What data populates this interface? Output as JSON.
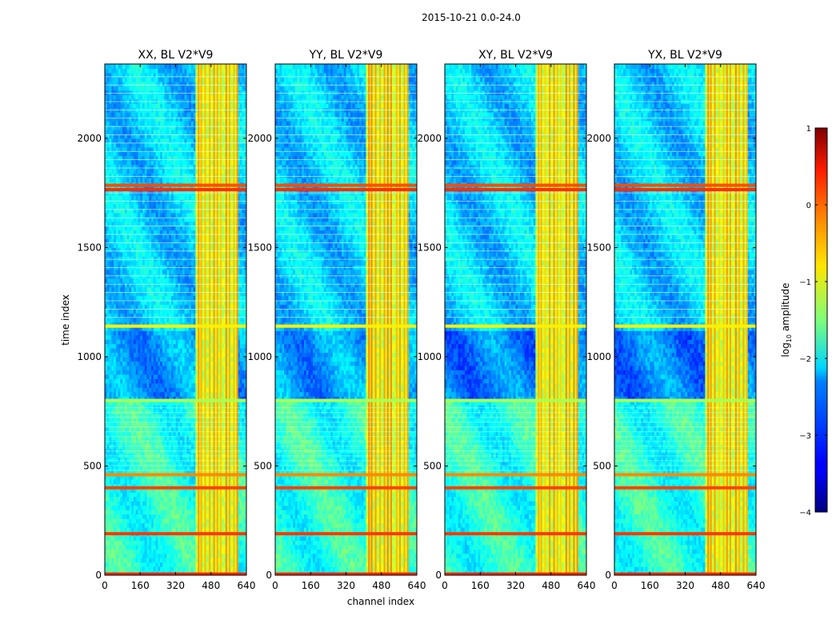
{
  "suptitle": "2015-10-21 0.0-24.0",
  "xlabel": "channel index",
  "ylabel": "time index",
  "chart_data": {
    "type": "heatmap",
    "xlim": [
      0,
      640
    ],
    "ylim": [
      0,
      2340
    ],
    "xticks": [
      0,
      160,
      320,
      480,
      640
    ],
    "yticks": [
      0,
      500,
      1000,
      1500,
      2000
    ],
    "panels": [
      {
        "title": "XX, BL V2*V9"
      },
      {
        "title": "YY, BL V2*V9"
      },
      {
        "title": "XY, BL V2*V9"
      },
      {
        "title": "YX, BL V2*V9"
      }
    ],
    "colorbar": {
      "label": "log10 amplitude",
      "label_main": "log",
      "label_sub": "10",
      "label_tail": " amplitude",
      "range": [
        -4,
        1
      ],
      "ticks": [
        "1",
        "0",
        "−1",
        "−2",
        "−3",
        "−4"
      ],
      "tick_values": [
        1,
        0,
        -1,
        -2,
        -3,
        -4
      ],
      "colormap": "jet"
    },
    "bright_channel_band": [
      410,
      600
    ],
    "flagged_rows": [
      {
        "t": 5,
        "level": 0.2
      },
      {
        "t": 190,
        "level": 0.1
      },
      {
        "t": 400,
        "level": 0.05
      },
      {
        "t": 460,
        "level": -0.3
      },
      {
        "t": 800,
        "level": -1.3
      },
      {
        "t": 1140,
        "level": -0.8
      },
      {
        "t": 1765,
        "level": 0.15
      },
      {
        "t": 1785,
        "level": 0.0
      }
    ]
  }
}
